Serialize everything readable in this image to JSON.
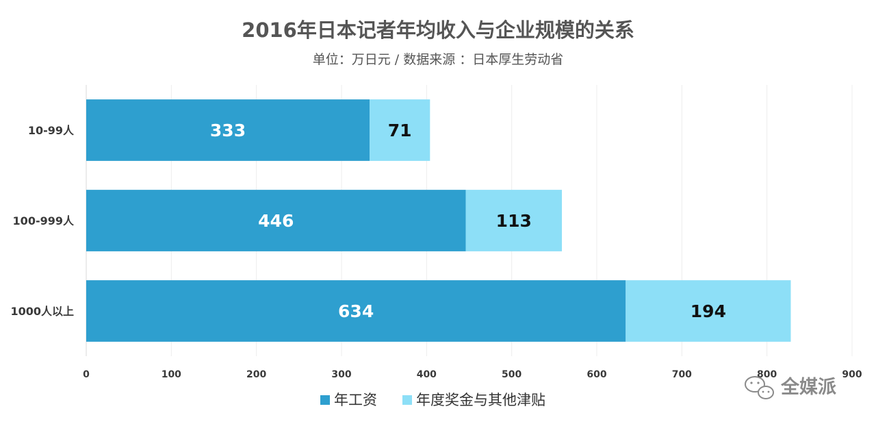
{
  "chart_data": {
    "type": "bar",
    "orientation": "horizontal",
    "stacked": true,
    "title": "2016年日本记者年均收入与企业规模的关系",
    "subtitle": "单位：万日元 / 数据来源 ：日本厚生劳动省",
    "categories": [
      "10-99人",
      "100-999人",
      "1000人以上"
    ],
    "series": [
      {
        "name": "年工资",
        "values": [
          333,
          446,
          634
        ],
        "color": "#2e9fcf"
      },
      {
        "name": "年度奖金与其他津贴",
        "values": [
          71,
          113,
          194
        ],
        "color": "#8ddff7"
      }
    ],
    "xlim": [
      0,
      900
    ],
    "xticks": [
      "0",
      "100",
      "200",
      "300",
      "400",
      "500",
      "600",
      "700",
      "800",
      "900"
    ],
    "grid": true,
    "legend": "bottom",
    "label_colors": [
      "#ffffff",
      "#111111"
    ]
  },
  "watermark": {
    "text": "全媒派",
    "icon": "wechat-icon"
  }
}
